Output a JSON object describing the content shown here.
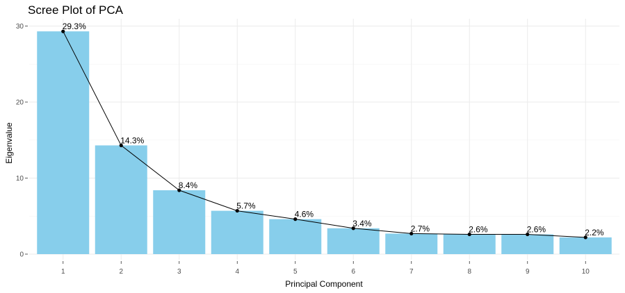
{
  "chart_data": {
    "type": "bar",
    "title": "Scree Plot of PCA",
    "xlabel": "Principal Component",
    "ylabel": "Eigenvalue",
    "categories": [
      "1",
      "2",
      "3",
      "4",
      "5",
      "6",
      "7",
      "8",
      "9",
      "10"
    ],
    "values": [
      29.3,
      14.3,
      8.4,
      5.7,
      4.6,
      3.4,
      2.7,
      2.6,
      2.6,
      2.2
    ],
    "data_labels": [
      "29.3%",
      "14.3%",
      "8.4%",
      "5.7%",
      "4.6%",
      "3.4%",
      "2.7%",
      "2.6%",
      "2.6%",
      "2.2%"
    ],
    "y_ticks": [
      0,
      10,
      20,
      30
    ],
    "ylim": [
      0,
      31.8
    ],
    "grid": true,
    "overlay": "line-with-points",
    "colors": {
      "bar": "#87CEEB",
      "line": "#000000",
      "grid": "#ebebeb"
    }
  }
}
